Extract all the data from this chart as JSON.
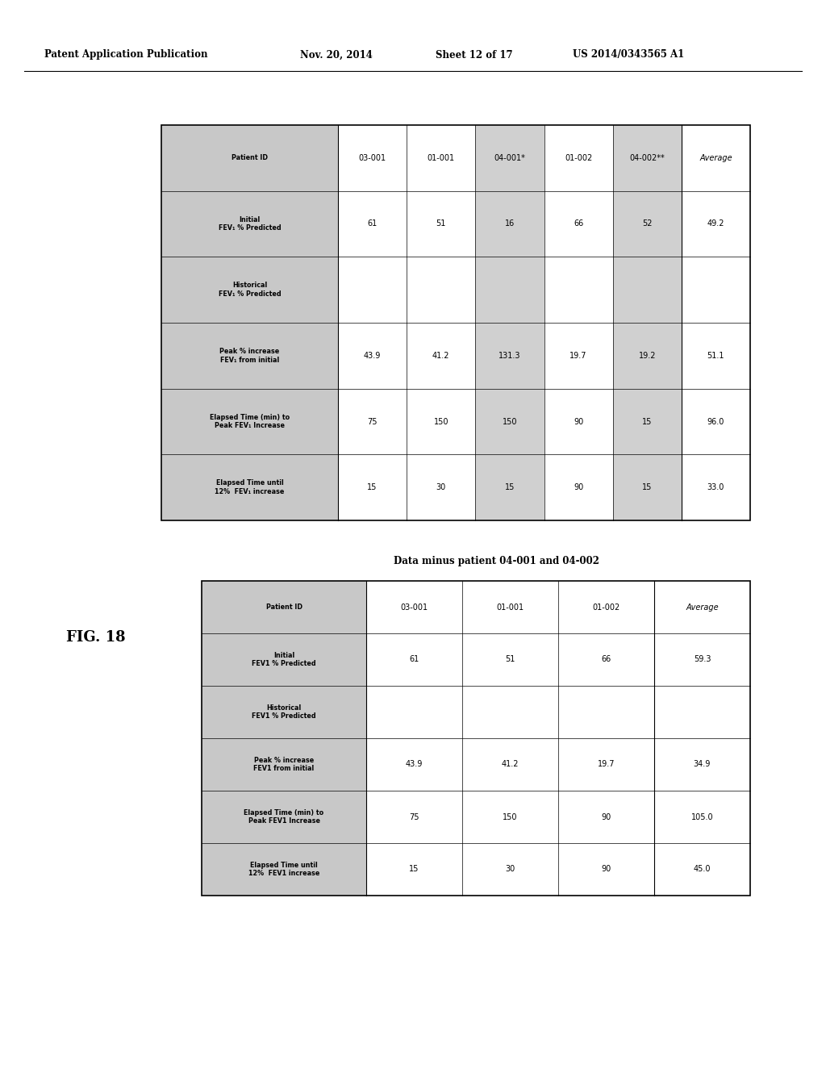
{
  "header_text": "Patent Application Publication",
  "date_text": "Nov. 20, 2014",
  "sheet_text": "Sheet 12 of 17",
  "patent_text": "US 2014/0343565 A1",
  "fig_label": "FIG. 18",
  "table1": {
    "col_headers": [
      "Patient ID",
      "Initial\nFEV₁ % Predicted",
      "Historical\nFEV₁ % Predicted",
      "Peak % increase\nFEV₁ from initial",
      "Elapsed Time (min) to\nPeak FEV₁ Increase",
      "Elapsed Time until\n12%  FEV₁ increase"
    ],
    "rows": [
      [
        "03-001",
        "61",
        "",
        "43.9",
        "75",
        "15"
      ],
      [
        "01-001",
        "51",
        "",
        "41.2",
        "150",
        "30"
      ],
      [
        "04-001*",
        "16",
        "",
        "131.3",
        "150",
        "15"
      ],
      [
        "01-002",
        "66",
        "",
        "19.7",
        "90",
        "90"
      ],
      [
        "04-002**",
        "52",
        "",
        "19.2",
        "15",
        "15"
      ]
    ],
    "avg_row": [
      "Average",
      "49.2",
      "",
      "51.1",
      "96.0",
      "33.0"
    ],
    "highlighted_rows": [
      2,
      4
    ]
  },
  "between_text": "Data minus patient 04-001 and 04-002",
  "table2": {
    "col_headers": [
      "Patient ID",
      "Initial\nFEV1 % Predicted",
      "Historical\nFEV1 % Predicted",
      "Peak % increase\nFEV1 from initial",
      "Elapsed Time (min) to\nPeak FEV1 Increase",
      "Elapsed Time until\n12%  FEV1 increase"
    ],
    "rows": [
      [
        "03-001",
        "61",
        "",
        "43.9",
        "75",
        "15"
      ],
      [
        "01-001",
        "51",
        "",
        "41.2",
        "150",
        "30"
      ],
      [
        "01-002",
        "66",
        "",
        "19.7",
        "90",
        "90"
      ]
    ],
    "avg_row": [
      "Average",
      "59.3",
      "",
      "34.9",
      "105.0",
      "45.0"
    ]
  },
  "bg_color": "#ffffff",
  "header_bg": "#c8c8c8",
  "highlight_bg": "#d0d0d0",
  "avg2_value": "59.3"
}
